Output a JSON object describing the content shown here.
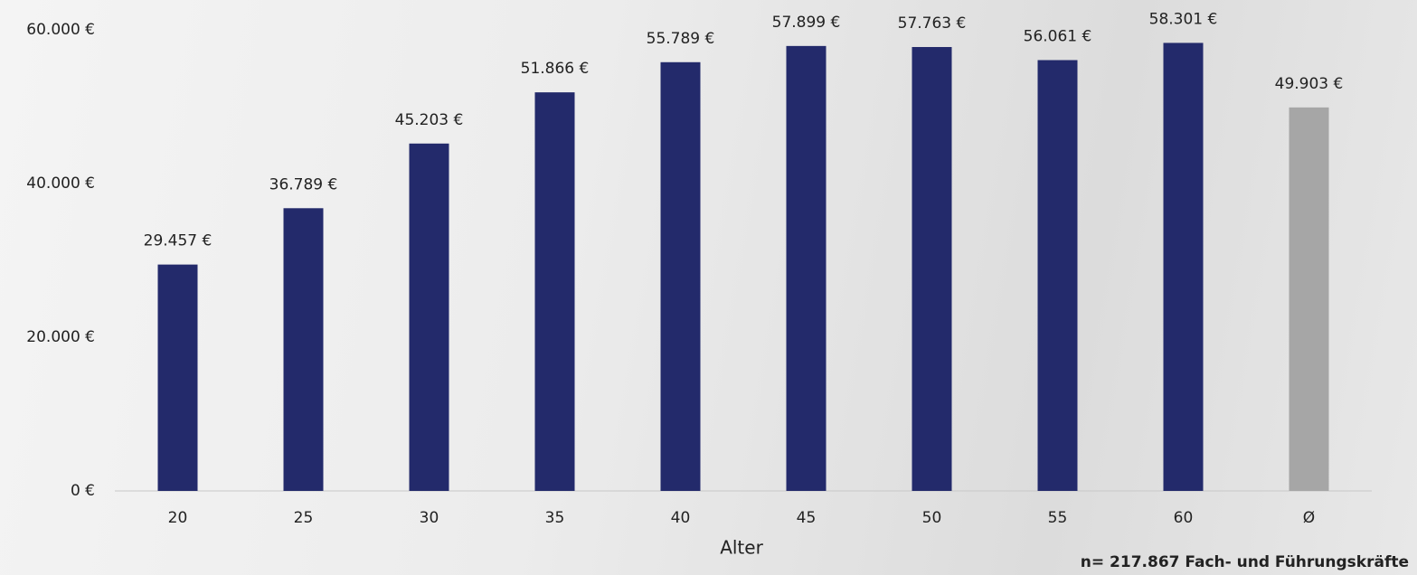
{
  "chart_data": {
    "type": "bar",
    "categories": [
      "20",
      "25",
      "30",
      "35",
      "40",
      "45",
      "50",
      "55",
      "60",
      "Ø"
    ],
    "values": [
      29457,
      36789,
      45203,
      51866,
      55789,
      57899,
      57763,
      56061,
      58301,
      49903
    ],
    "value_labels": [
      "29.457 €",
      "36.789 €",
      "45.203 €",
      "51.866 €",
      "55.789 €",
      "57.899 €",
      "57.763 €",
      "56.061 €",
      "58.301 €",
      "49.903 €"
    ],
    "colors": [
      "#232a6b",
      "#232a6b",
      "#232a6b",
      "#232a6b",
      "#232a6b",
      "#232a6b",
      "#232a6b",
      "#232a6b",
      "#232a6b",
      "#a6a6a6"
    ],
    "ylim": [
      0,
      60000
    ],
    "yticks": [
      {
        "value": 0,
        "label": "0 €"
      },
      {
        "value": 20000,
        "label": "20.000 €"
      },
      {
        "value": 40000,
        "label": "40.000 €"
      },
      {
        "value": 60000,
        "label": "60.000 €"
      }
    ],
    "xlabel": "Alter",
    "footnote": "n= 217.867 Fach- und Führungskräfte"
  }
}
